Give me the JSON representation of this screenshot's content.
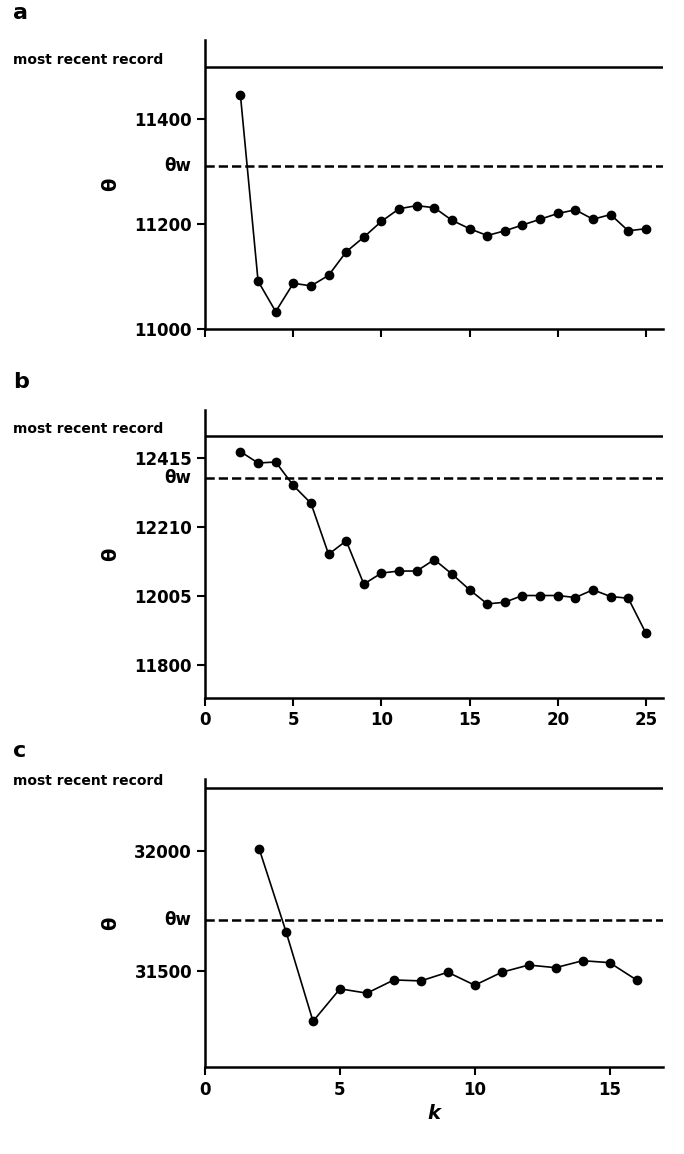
{
  "chart_data": [
    {
      "type": "line",
      "title": "a",
      "y_label": "θ",
      "color": "#000000",
      "marker": "o",
      "line_style": "solid",
      "tick_labels": "y",
      "x": [
        2,
        3,
        4,
        5,
        6,
        7,
        8,
        9,
        10,
        11,
        12,
        13,
        14,
        15,
        16,
        17,
        18,
        19,
        20,
        21,
        22,
        23,
        24,
        25
      ],
      "values": [
        11445,
        11091,
        11033,
        11087,
        11082,
        11102,
        11147,
        11175,
        11205,
        11229,
        11235,
        11231,
        11207,
        11191,
        11178,
        11187,
        11198,
        11209,
        11220,
        11227,
        11209,
        11218,
        11187,
        11191
      ],
      "xlim": [
        0,
        26
      ],
      "xticks": [
        0,
        5,
        10,
        15,
        20,
        25
      ],
      "ylim": [
        11000,
        11550
      ],
      "yticks": [
        11000,
        11200,
        11400
      ],
      "reference_lines": [
        {
          "label": "most recent record",
          "value": 11500,
          "line_style": "solid"
        },
        {
          "label": "θw",
          "value": 11310,
          "line_style": "dashed"
        }
      ]
    },
    {
      "type": "line",
      "title": "b",
      "y_label": "θ",
      "color": "#000000",
      "marker": "o",
      "line_style": "solid",
      "x": [
        2,
        3,
        4,
        5,
        6,
        7,
        8,
        9,
        10,
        11,
        12,
        13,
        14,
        15,
        16,
        17,
        18,
        19,
        20,
        21,
        22,
        23,
        24,
        25
      ],
      "values": [
        12435,
        12401,
        12404,
        12334,
        12281,
        12129,
        12169,
        12040,
        12073,
        12079,
        12079,
        12113,
        12070,
        12023,
        11981,
        11986,
        12006,
        12006,
        12006,
        12000,
        12023,
        12003,
        11998,
        11894
      ],
      "xlim": [
        0,
        26
      ],
      "xticks": [
        0,
        5,
        10,
        15,
        20,
        25
      ],
      "ylim": [
        11700,
        12560
      ],
      "yticks": [
        11800,
        12005,
        12210,
        12415
      ],
      "reference_lines": [
        {
          "label": "most recent record",
          "value": 12482,
          "line_style": "solid"
        },
        {
          "label": "θw",
          "value": 12356,
          "line_style": "dashed"
        }
      ]
    },
    {
      "type": "line",
      "title": "c",
      "y_label": "θ",
      "x_label": "k",
      "color": "#000000",
      "marker": "o",
      "line_style": "solid",
      "x": [
        2,
        3,
        4,
        5,
        6,
        7,
        8,
        9,
        10,
        11,
        12,
        13,
        14,
        15,
        16
      ],
      "values": [
        32010,
        31664,
        31292,
        31427,
        31409,
        31464,
        31460,
        31496,
        31442,
        31496,
        31526,
        31515,
        31544,
        31536,
        31464
      ],
      "xlim": [
        0,
        17
      ],
      "xticks": [
        0,
        5,
        10,
        15
      ],
      "ylim": [
        31100,
        32300
      ],
      "yticks": [
        31500,
        32000
      ],
      "reference_lines": [
        {
          "label": "most recent record",
          "value": 32263,
          "line_style": "solid"
        },
        {
          "label": "θw",
          "value": 31715,
          "line_style": "dashed"
        }
      ]
    }
  ]
}
